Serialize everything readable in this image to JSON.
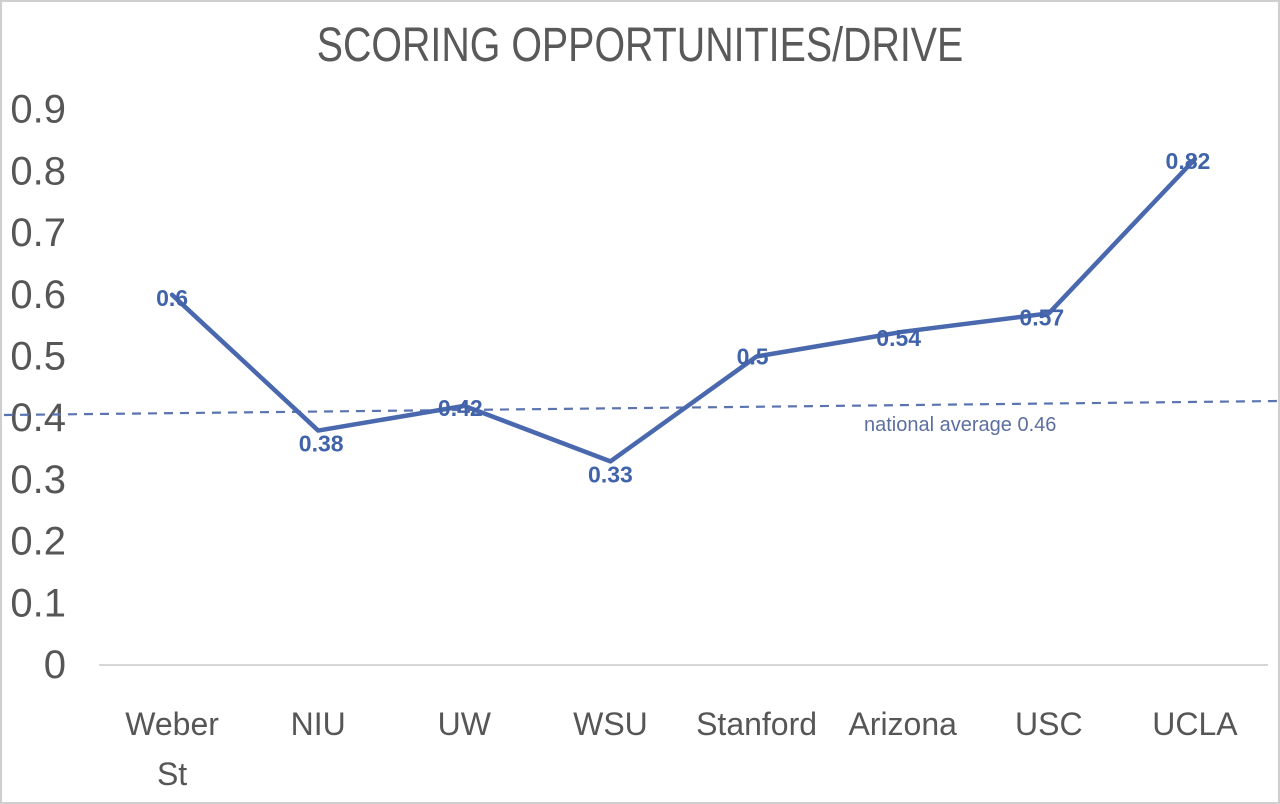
{
  "chart_data": {
    "type": "line",
    "title": "SCORING OPPORTUNITIES/DRIVE",
    "categories": [
      "Weber St",
      "NIU",
      "UW",
      "WSU",
      "Stanford",
      "Arizona",
      "USC",
      "UCLA"
    ],
    "values": [
      0.6,
      0.38,
      0.42,
      0.33,
      0.5,
      0.54,
      0.57,
      0.82
    ],
    "data_labels": [
      "0.6",
      "0.38",
      "0.42",
      "0.33",
      "0.5",
      "0.54",
      "0.57",
      "0.82"
    ],
    "y_ticks": [
      "0.9",
      "0.8",
      "0.7",
      "0.6",
      "0.5",
      "0.4",
      "0.3",
      "0.2",
      "0.1",
      "0"
    ],
    "ylim": [
      0,
      0.9
    ],
    "xlabel": "",
    "ylabel": "",
    "grid": "off",
    "legend": "none",
    "reference_line": {
      "label": "national average 0.46",
      "value": 0.46
    },
    "colors": {
      "series": "#4A68AE",
      "data_label": "#4163A9",
      "reference_line": "#5C73B0",
      "reference_text": "#5D6FA1",
      "title": "#595959",
      "axis_text": "#565656",
      "axis_line": "#C9C9C9"
    }
  }
}
